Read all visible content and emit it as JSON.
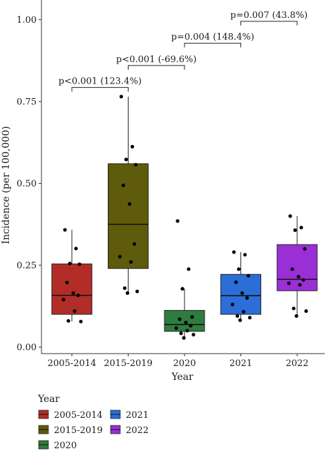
{
  "chart_data": {
    "type": "box",
    "xlabel": "Year",
    "ylabel": "Incidence (per 100,000)",
    "ylim": [
      -0.02,
      1.06
    ],
    "yticks": [
      0.0,
      0.25,
      0.5,
      0.75,
      1.0
    ],
    "ytick_labels": [
      "0.00",
      "0.25",
      "0.50",
      "0.75",
      "1.00"
    ],
    "categories": [
      "2005-2014",
      "2015-2019",
      "2020",
      "2021",
      "2022"
    ],
    "colors": [
      "#b32d28",
      "#5e5b0c",
      "#2e7d3e",
      "#2b6ed8",
      "#9b2fd6"
    ],
    "boxes": [
      {
        "category": "2005-2014",
        "q1": 0.1,
        "median": 0.158,
        "q3": 0.254,
        "whisker_low": 0.078,
        "whisker_high": 0.358,
        "points": [
          0.358,
          0.301,
          0.255,
          0.253,
          0.197,
          0.165,
          0.158,
          0.145,
          0.11,
          0.08,
          0.078
        ]
      },
      {
        "category": "2015-2019",
        "q1": 0.24,
        "median": 0.375,
        "q3": 0.56,
        "whisker_low": 0.165,
        "whisker_high": 0.765,
        "points": [
          0.765,
          0.612,
          0.573,
          0.557,
          0.494,
          0.437,
          0.315,
          0.276,
          0.26,
          0.18,
          0.17,
          0.165
        ]
      },
      {
        "category": "2020",
        "q1": 0.048,
        "median": 0.069,
        "q3": 0.112,
        "whisker_low": 0.028,
        "whisker_high": 0.178,
        "points": [
          0.385,
          0.238,
          0.178,
          0.092,
          0.085,
          0.075,
          0.065,
          0.058,
          0.05,
          0.042,
          0.038,
          0.028
        ]
      },
      {
        "category": "2021",
        "q1": 0.1,
        "median": 0.157,
        "q3": 0.222,
        "whisker_low": 0.082,
        "whisker_high": 0.29,
        "points": [
          0.29,
          0.282,
          0.238,
          0.218,
          0.198,
          0.165,
          0.15,
          0.13,
          0.108,
          0.095,
          0.09,
          0.082
        ]
      },
      {
        "category": "2022",
        "q1": 0.172,
        "median": 0.207,
        "q3": 0.313,
        "whisker_low": 0.095,
        "whisker_high": 0.4,
        "points": [
          0.4,
          0.365,
          0.357,
          0.3,
          0.238,
          0.215,
          0.205,
          0.195,
          0.19,
          0.118,
          0.11,
          0.095
        ]
      }
    ],
    "comparisons": [
      {
        "from": 0,
        "to": 1,
        "y": 0.793,
        "label": "p<0.001 (123.4%)"
      },
      {
        "from": 1,
        "to": 2,
        "y": 0.86,
        "label": "p<0.001 (-69.6%)"
      },
      {
        "from": 2,
        "to": 3,
        "y": 0.928,
        "label": "p=0.004 (148.4%)"
      },
      {
        "from": 3,
        "to": 4,
        "y": 0.995,
        "label": "p=0.007 (43.8%)"
      }
    ],
    "legend": {
      "title": "Year",
      "placement": "bottom-left",
      "entries": [
        "2005-2014",
        "2015-2019",
        "2020",
        "2021",
        "2022"
      ]
    }
  }
}
